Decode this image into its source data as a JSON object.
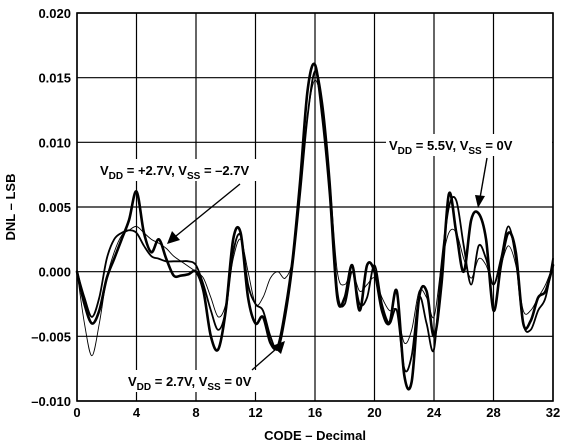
{
  "chart_data": {
    "type": "line",
    "xlabel": "CODE – Decimal",
    "ylabel": "DNL – LSB",
    "xlim": [
      0,
      32
    ],
    "ylim": [
      -0.01,
      0.02
    ],
    "x_ticks": [
      "0",
      "4",
      "8",
      "12",
      "16",
      "20",
      "24",
      "28",
      "32"
    ],
    "y_ticks": [
      "–0.010",
      "–0.005",
      "0.000",
      "0.005",
      "0.010",
      "0.015",
      "0.020"
    ],
    "grid": true,
    "annotations": [
      {
        "pre1": "V",
        "sub1": "DD",
        "mid": " = 5.5V, V",
        "sub2": "SS",
        "post": " = 0V"
      },
      {
        "pre1": "V",
        "sub1": "DD",
        "mid": " = +2.7V, V",
        "sub2": "SS",
        "post": " = –2.7V"
      },
      {
        "pre1": "V",
        "sub1": "DD",
        "mid": " = 2.7V, V",
        "sub2": "SS",
        "post": " = 0V"
      }
    ],
    "series": [
      {
        "x": [
          0,
          0.5,
          1,
          1.5,
          2,
          2.5,
          3,
          3.5,
          4,
          4.5,
          5,
          5.5,
          6,
          6.5,
          7,
          7.5,
          8,
          8.5,
          9,
          9.5,
          10,
          10.5,
          11,
          11.5,
          12,
          12.5,
          13,
          13.5,
          14,
          14.5,
          15,
          15.5,
          16,
          16.5,
          17,
          17.5,
          18,
          18.5,
          19,
          19.5,
          20,
          20.5,
          21,
          21.5,
          22,
          22.5,
          23,
          23.5,
          24,
          24.5,
          25,
          25.5,
          26,
          26.5,
          27,
          27.5,
          28,
          28.5,
          29,
          29.5,
          30,
          30.5,
          31,
          31.5,
          32
        ],
        "y": [
          0.0,
          -0.0025,
          -0.004,
          -0.003,
          -0.0005,
          0.001,
          0.0025,
          0.004,
          0.0062,
          0.003,
          0.0015,
          0.0025,
          0.001,
          -0.0003,
          -0.0003,
          -0.0002,
          0.0,
          -0.0015,
          -0.005,
          -0.006,
          -0.003,
          0.0025,
          0.003,
          -0.002,
          -0.004,
          -0.0035,
          -0.0055,
          -0.0058,
          -0.003,
          0.001,
          0.007,
          0.014,
          0.016,
          0.012,
          0.006,
          -0.002,
          -0.002,
          0.0005,
          -0.003,
          0.0005,
          0.0,
          -0.003,
          -0.004,
          -0.0015,
          -0.008,
          -0.0085,
          -0.002,
          -0.0015,
          -0.005,
          -0.001,
          0.006,
          0.003,
          0.0,
          0.004,
          0.0045,
          0.0025,
          -0.003,
          0.0005,
          0.003,
          0.0015,
          -0.004,
          -0.0038,
          -0.002,
          -0.0015,
          0.0005
        ],
        "stroke_width": 2.6
      },
      {
        "x": [
          0,
          0.5,
          1,
          1.5,
          2,
          2.5,
          3,
          3.5,
          4,
          4.5,
          5,
          5.5,
          6,
          6.5,
          7,
          7.5,
          8,
          8.5,
          9,
          9.5,
          10,
          10.5,
          11,
          11.5,
          12,
          12.5,
          13,
          13.5,
          14,
          14.5,
          15,
          15.5,
          16,
          16.5,
          17,
          17.5,
          18,
          18.5,
          19,
          19.5,
          20,
          20.5,
          21,
          21.5,
          22,
          22.5,
          23,
          23.5,
          24,
          24.5,
          25,
          25.5,
          26,
          26.5,
          27,
          27.5,
          28,
          28.5,
          29,
          29.5,
          30,
          30.5,
          31,
          31.5,
          32
        ],
        "y": [
          0.0,
          -0.002,
          -0.0035,
          -0.002,
          0.001,
          0.0025,
          0.003,
          0.0032,
          0.003,
          0.002,
          0.0012,
          0.001,
          0.0008,
          0.0008,
          0.0008,
          0.0008,
          0.0005,
          -0.001,
          -0.003,
          -0.0045,
          -0.003,
          0.0015,
          0.0028,
          -0.001,
          -0.0025,
          -0.003,
          -0.005,
          -0.006,
          -0.0035,
          0.0005,
          0.006,
          0.012,
          0.0155,
          0.013,
          0.007,
          -0.0015,
          -0.0025,
          0.0,
          -0.0025,
          -0.002,
          0.0005,
          -0.0025,
          -0.004,
          -0.003,
          -0.0075,
          -0.0065,
          -0.002,
          -0.004,
          -0.006,
          0.0005,
          0.005,
          0.0055,
          0.002,
          -0.001,
          0.002,
          0.001,
          -0.001,
          0.001,
          0.0035,
          0.001,
          -0.004,
          -0.0045,
          -0.003,
          -0.002,
          0.001
        ],
        "stroke_width": 1.8
      },
      {
        "x": [
          0,
          0.5,
          1,
          1.5,
          2,
          2.5,
          3,
          3.5,
          4,
          4.5,
          5,
          5.5,
          6,
          6.5,
          7,
          7.5,
          8,
          8.5,
          9,
          9.5,
          10,
          10.5,
          11,
          11.5,
          12,
          12.5,
          13,
          13.5,
          14,
          14.5,
          15,
          15.5,
          16,
          16.5,
          17,
          17.5,
          18,
          18.5,
          19,
          19.5,
          20,
          20.5,
          21,
          21.5,
          22,
          22.5,
          23,
          23.5,
          24,
          24.5,
          25,
          25.5,
          26,
          26.5,
          27,
          27.5,
          28,
          28.5,
          29,
          29.5,
          30,
          30.5,
          31,
          31.5,
          32
        ],
        "y": [
          0.0,
          -0.004,
          -0.0065,
          -0.004,
          -0.0005,
          0.0015,
          0.0028,
          0.0032,
          0.0035,
          0.003,
          0.0025,
          0.0022,
          0.0018,
          0.0012,
          0.0008,
          0.0004,
          0.0,
          -0.0005,
          -0.002,
          -0.0035,
          -0.0025,
          0.001,
          0.0025,
          0.0,
          -0.0025,
          -0.002,
          -0.0005,
          0.0,
          -0.0005,
          0.001,
          0.006,
          0.012,
          0.0148,
          0.0125,
          0.007,
          0.0,
          -0.001,
          0.0,
          -0.0015,
          -0.001,
          -0.0005,
          -0.002,
          -0.003,
          -0.003,
          -0.0055,
          -0.0045,
          -0.0015,
          -0.002,
          -0.0035,
          0.0005,
          0.003,
          0.003,
          0.001,
          -0.0005,
          0.001,
          0.0005,
          -0.001,
          0.0005,
          0.002,
          0.0005,
          -0.003,
          -0.003,
          -0.002,
          -0.001,
          0.0005
        ],
        "stroke_width": 0.9
      }
    ]
  }
}
